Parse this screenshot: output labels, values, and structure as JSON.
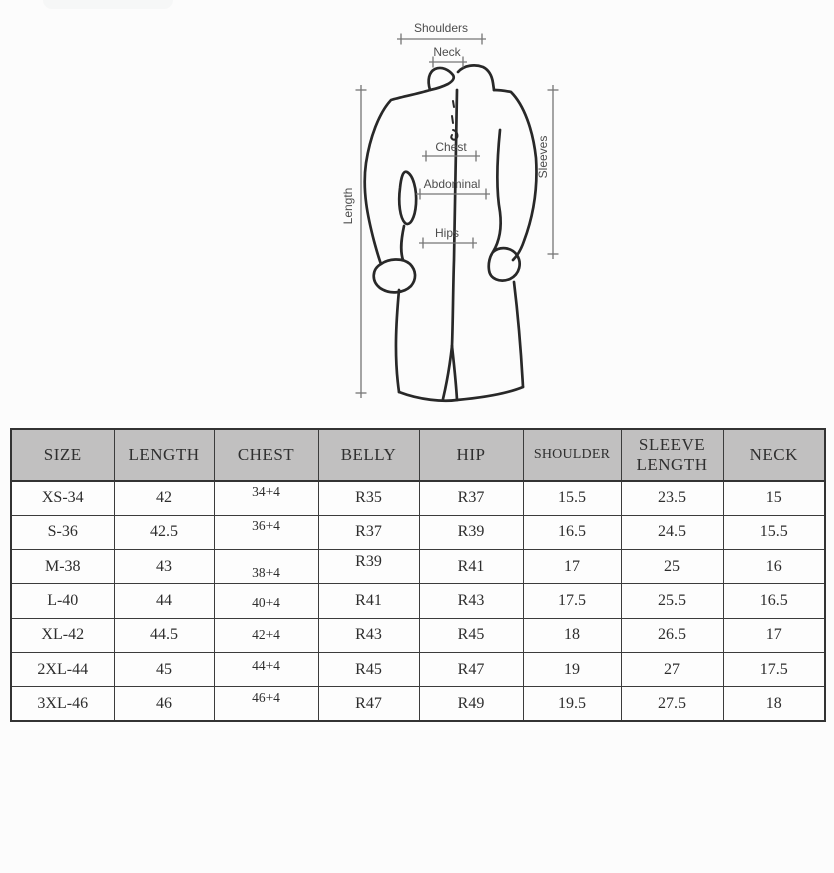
{
  "diagram": {
    "labels": {
      "shoulders": "Shoulders",
      "neck": "Neck",
      "chest": "Chest",
      "abdominal": "Abdominal",
      "hips": "Hips",
      "length": "Length",
      "sleeves": "Sleeves"
    }
  },
  "size_table": {
    "columns": [
      "SIZE",
      "LENGTH",
      "CHEST",
      "BELLY",
      "HIP",
      "SHOULDER",
      "SLEEVE LENGTH",
      "NECK"
    ],
    "rows": [
      [
        "XS-34",
        "42",
        "34+4",
        "R35",
        "R37",
        "15.5",
        "23.5",
        "15"
      ],
      [
        "S-36",
        "42.5",
        "36+4",
        "R37",
        "R39",
        "16.5",
        "24.5",
        "15.5"
      ],
      [
        "M-38",
        "43",
        "38+4",
        "R39",
        "R41",
        "17",
        "25",
        "16"
      ],
      [
        "L-40",
        "44",
        "40+4",
        "R41",
        "R43",
        "17.5",
        "25.5",
        "16.5"
      ],
      [
        "XL-42",
        "44.5",
        "42+4",
        "R43",
        "R45",
        "18",
        "26.5",
        "17"
      ],
      [
        "2XL-44",
        "45",
        "44+4",
        "R45",
        "R47",
        "19",
        "27",
        "17.5"
      ],
      [
        "3XL-46",
        "46",
        "46+4",
        "R47",
        "R49",
        "19.5",
        "27.5",
        "18"
      ]
    ]
  },
  "colors": {
    "page_background": "#fcfcfc",
    "header_background": "#c1c0c0",
    "table_border": "#3c3c3c",
    "table_text": "#2d2d2d",
    "garment_outline": "#282828",
    "dimension_lines": "#757575",
    "dimension_text": "#4d4d4d"
  }
}
